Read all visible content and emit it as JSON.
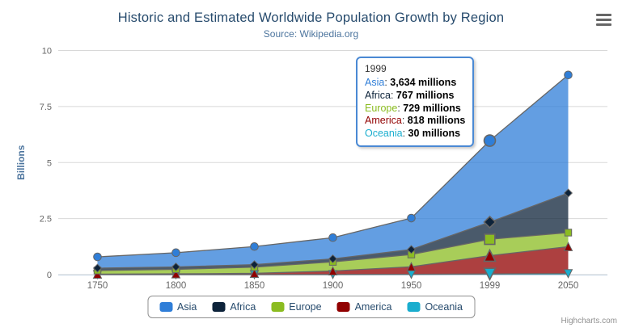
{
  "header": {
    "title": "Historic and Estimated Worldwide Population Growth by Region",
    "subtitle": "Source: Wikipedia.org"
  },
  "menu": {
    "icon": "hamburger-menu-icon"
  },
  "credits": {
    "label": "Highcharts.com"
  },
  "tooltip": {
    "header": "1999",
    "rows": [
      {
        "name": "Asia",
        "value": "3,634 millions"
      },
      {
        "name": "Africa",
        "value": "767 millions"
      },
      {
        "name": "Europe",
        "value": "729 millions"
      },
      {
        "name": "America",
        "value": "818 millions"
      },
      {
        "name": "Oceania",
        "value": "30 millions"
      }
    ],
    "border_color": "#4a89d4"
  },
  "chart_data": {
    "type": "area",
    "stacking": "normal",
    "title": "Historic and Estimated Worldwide Population Growth by Region",
    "subtitle": "Source: Wikipedia.org",
    "categories": [
      "1750",
      "1800",
      "1850",
      "1900",
      "1950",
      "1999",
      "2050"
    ],
    "series": [
      {
        "name": "Asia",
        "color": "#2f7ed8",
        "marker": "circle",
        "values": [
          502,
          635,
          809,
          947,
          1402,
          3634,
          5268
        ]
      },
      {
        "name": "Africa",
        "color": "#0d233a",
        "marker": "diamond",
        "values": [
          106,
          107,
          111,
          133,
          221,
          767,
          1766
        ]
      },
      {
        "name": "Europe",
        "color": "#8bbc21",
        "marker": "square",
        "values": [
          163,
          203,
          276,
          408,
          547,
          729,
          628
        ]
      },
      {
        "name": "America",
        "color": "#910000",
        "marker": "triangle",
        "values": [
          18,
          31,
          54,
          156,
          339,
          818,
          1201
        ]
      },
      {
        "name": "Oceania",
        "color": "#1aadce",
        "marker": "triangle-down",
        "values": [
          2,
          2,
          2,
          6,
          13,
          30,
          46
        ]
      }
    ],
    "values_unit": "millions",
    "xlabel": "",
    "ylabel": "Billions",
    "y_ticks_billions": [
      0,
      2.5,
      5,
      7.5,
      10
    ],
    "ylim_billions": [
      0,
      10
    ],
    "y_max_millions": 10000,
    "grid": true,
    "legend_position": "bottom",
    "hover_category": "1999",
    "hover_index": 5
  },
  "colors": {
    "grid_line": "#d8d8d8",
    "axis_line": "#c0d0e0",
    "series_outline": "#666666",
    "axis_label": "#666666",
    "y_axis_title": "#4d759e",
    "fill_opacity": "0.75"
  }
}
